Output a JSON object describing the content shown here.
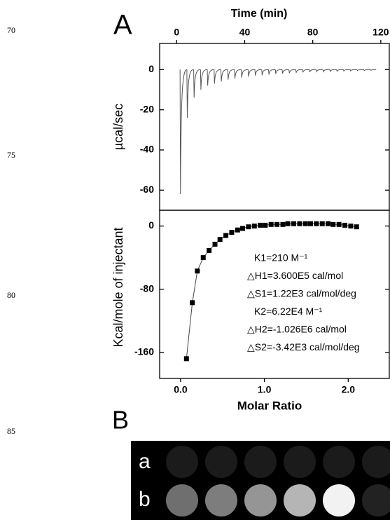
{
  "line_numbers": [
    "70",
    "75",
    "80",
    "85"
  ],
  "panel_a_label": "A",
  "panel_b": {
    "label": "B",
    "rows": [
      "a",
      "b"
    ]
  },
  "chart_data": [
    {
      "type": "spikes",
      "x_label": "Time (min)",
      "y_label": "µcal/sec",
      "xlim": [
        -10,
        125
      ],
      "ylim": [
        -70,
        13
      ],
      "xticks": [
        0,
        40,
        80,
        120
      ],
      "yticks": [
        0,
        -20,
        -40,
        -60
      ],
      "color": "#555555",
      "x": [
        2,
        6,
        10,
        14,
        18,
        22,
        26,
        30,
        34,
        38,
        42,
        46,
        50,
        54,
        58,
        62,
        66,
        70,
        74,
        78,
        82,
        86,
        90,
        94,
        98,
        102,
        106,
        110,
        114
      ],
      "values": [
        -62,
        -24,
        -14,
        -10,
        -8,
        -7,
        -6,
        -5,
        -4.5,
        -4,
        -3.5,
        -3,
        -2.8,
        -2.5,
        -2.2,
        -2,
        -1.8,
        -1.6,
        -1.4,
        -1.2,
        -1,
        -1,
        -0.9,
        -0.8,
        -0.7,
        -0.6,
        -0.5,
        -0.5,
        -0.4
      ]
    },
    {
      "type": "scatter",
      "x_label": "Molar Ratio",
      "y_label": "Kcal/mole of injectant",
      "xlim": [
        -0.25,
        2.49
      ],
      "ylim": [
        -193,
        20
      ],
      "xticks": [
        {
          "value": 0,
          "label": "0.0"
        },
        {
          "value": 1,
          "label": "1.0"
        },
        {
          "value": 2,
          "label": "2.0"
        }
      ],
      "yticks": [
        0,
        -80,
        -160
      ],
      "color": "#000000",
      "x": [
        0.07,
        0.14,
        0.2,
        0.27,
        0.34,
        0.41,
        0.47,
        0.54,
        0.61,
        0.68,
        0.74,
        0.81,
        0.88,
        0.95,
        1.01,
        1.08,
        1.15,
        1.22,
        1.28,
        1.35,
        1.42,
        1.49,
        1.55,
        1.62,
        1.69,
        1.76,
        1.82,
        1.89,
        1.96,
        2.03,
        2.1
      ],
      "values": [
        -168,
        -97,
        -57,
        -40,
        -31,
        -23,
        -17,
        -12,
        -8,
        -5,
        -3,
        -1,
        0,
        1,
        1,
        2,
        2,
        2,
        3,
        3,
        3,
        3,
        3,
        3,
        3,
        3,
        2,
        2,
        1,
        0,
        -1
      ],
      "annotations": [
        "K1=210 M⁻¹",
        "△H1=3.600E5 cal/mol",
        "△S1=1.22E3 cal/mol/deg",
        "K2=6.22E4 M⁻¹",
        "△H2=-1.026E6 cal/mol",
        "△S2=-3.42E3 cal/mol/deg"
      ]
    }
  ]
}
